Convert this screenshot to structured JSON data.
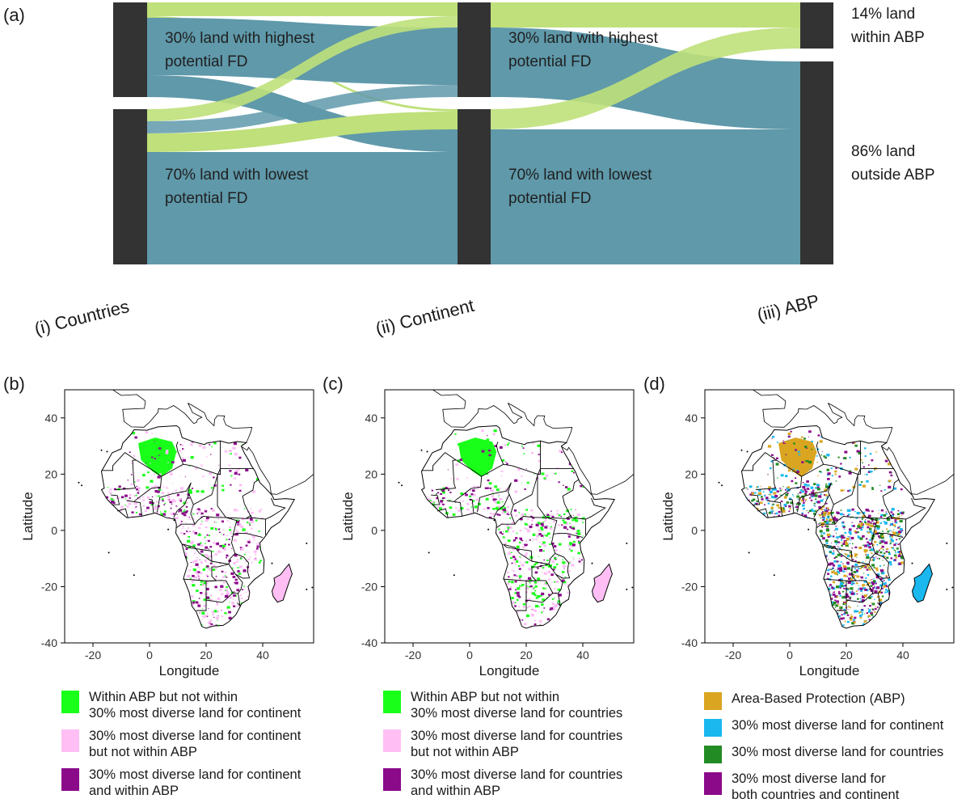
{
  "panel_a": {
    "letter": "(a)",
    "labels": {
      "countries_top_1": "30% land with highest",
      "countries_top_2": "potential FD",
      "countries_bottom_1": "70% land with lowest",
      "countries_bottom_2": "potential FD",
      "continent_top_1": "30% land with highest",
      "continent_top_2": "potential FD",
      "continent_bottom_1": "70% land with lowest",
      "continent_bottom_2": "potential FD",
      "abp_top_1": "14% land",
      "abp_top_2": "within ABP",
      "abp_bottom_1": "86% land",
      "abp_bottom_2": "outside ABP"
    },
    "axes": [
      "(i) Countries",
      "(ii) Continent",
      "(iii) ABP"
    ],
    "colors": {
      "node": "#333333",
      "flow_abp": "#bfe07a",
      "flow_other": "#5f99aa"
    }
  },
  "chart_data": [
    {
      "type": "sankey",
      "stages": [
        "(i) Countries",
        "(ii) Continent",
        "(iii) ABP"
      ],
      "nodes": [
        {
          "stage": "(i) Countries",
          "name": "30% land with highest potential FD",
          "share": 0.3
        },
        {
          "stage": "(i) Countries",
          "name": "70% land with lowest potential FD",
          "share": 0.7
        },
        {
          "stage": "(ii) Continent",
          "name": "30% land with highest potential FD",
          "share": 0.3
        },
        {
          "stage": "(ii) Continent",
          "name": "70% land with lowest potential FD",
          "share": 0.7
        },
        {
          "stage": "(iii) ABP",
          "name": "14% land within ABP",
          "share": 0.14
        },
        {
          "stage": "(iii) ABP",
          "name": "86% land outside ABP",
          "share": 0.86
        }
      ]
    },
    {
      "type": "map",
      "panel": "(b)",
      "xlabel": "Longitude",
      "ylabel": "Latitude",
      "xticks": [
        -20,
        0,
        20,
        40
      ],
      "yticks": [
        40,
        20,
        0,
        -20,
        -40
      ],
      "xlim": [
        -30,
        58
      ],
      "ylim": [
        -40,
        50
      ],
      "legend": [
        {
          "label_1": "Within ABP but not within",
          "label_2": "30% most diverse land for continent",
          "color": "#1aff1a"
        },
        {
          "label_1": "30% most diverse land for continent",
          "label_2": "but not within ABP",
          "color": "#ffbff5"
        },
        {
          "label_1": "30% most diverse land for continent",
          "label_2": "and within ABP",
          "color": "#8a0a8a"
        }
      ]
    },
    {
      "type": "map",
      "panel": "(c)",
      "xlabel": "Longitude",
      "ylabel": "Latitude",
      "xticks": [
        -20,
        0,
        20,
        40
      ],
      "yticks": [
        40,
        20,
        0,
        -20,
        -40
      ],
      "xlim": [
        -30,
        58
      ],
      "ylim": [
        -40,
        50
      ],
      "legend": [
        {
          "label_1": "Within ABP but not within",
          "label_2": "30% most diverse land for countries",
          "color": "#1aff1a"
        },
        {
          "label_1": "30% most diverse land for countries",
          "label_2": "but not within ABP",
          "color": "#ffbff5"
        },
        {
          "label_1": "30% most diverse land for countries",
          "label_2": "and within ABP",
          "color": "#8a0a8a"
        }
      ]
    },
    {
      "type": "map",
      "panel": "(d)",
      "xlabel": "Longitude",
      "ylabel": "Latitude",
      "xticks": [
        -20,
        0,
        20,
        40
      ],
      "yticks": [
        40,
        20,
        0,
        -20,
        -40
      ],
      "xlim": [
        -30,
        58
      ],
      "ylim": [
        -40,
        50
      ],
      "legend": [
        {
          "label_1": "Area-Based Protection (ABP)",
          "label_2": "",
          "color": "#daa520"
        },
        {
          "label_1": "30% most diverse land for continent",
          "label_2": "",
          "color": "#1ab8ef"
        },
        {
          "label_1": "30% most diverse land for countries",
          "label_2": "",
          "color": "#238b23"
        },
        {
          "label_1": "30% most diverse land for",
          "label_2": "both countries and continent",
          "color": "#8a0a8a"
        }
      ]
    }
  ],
  "panels": {
    "b": {
      "letter": "(b)"
    },
    "c": {
      "letter": "(c)"
    },
    "d": {
      "letter": "(d)"
    }
  }
}
